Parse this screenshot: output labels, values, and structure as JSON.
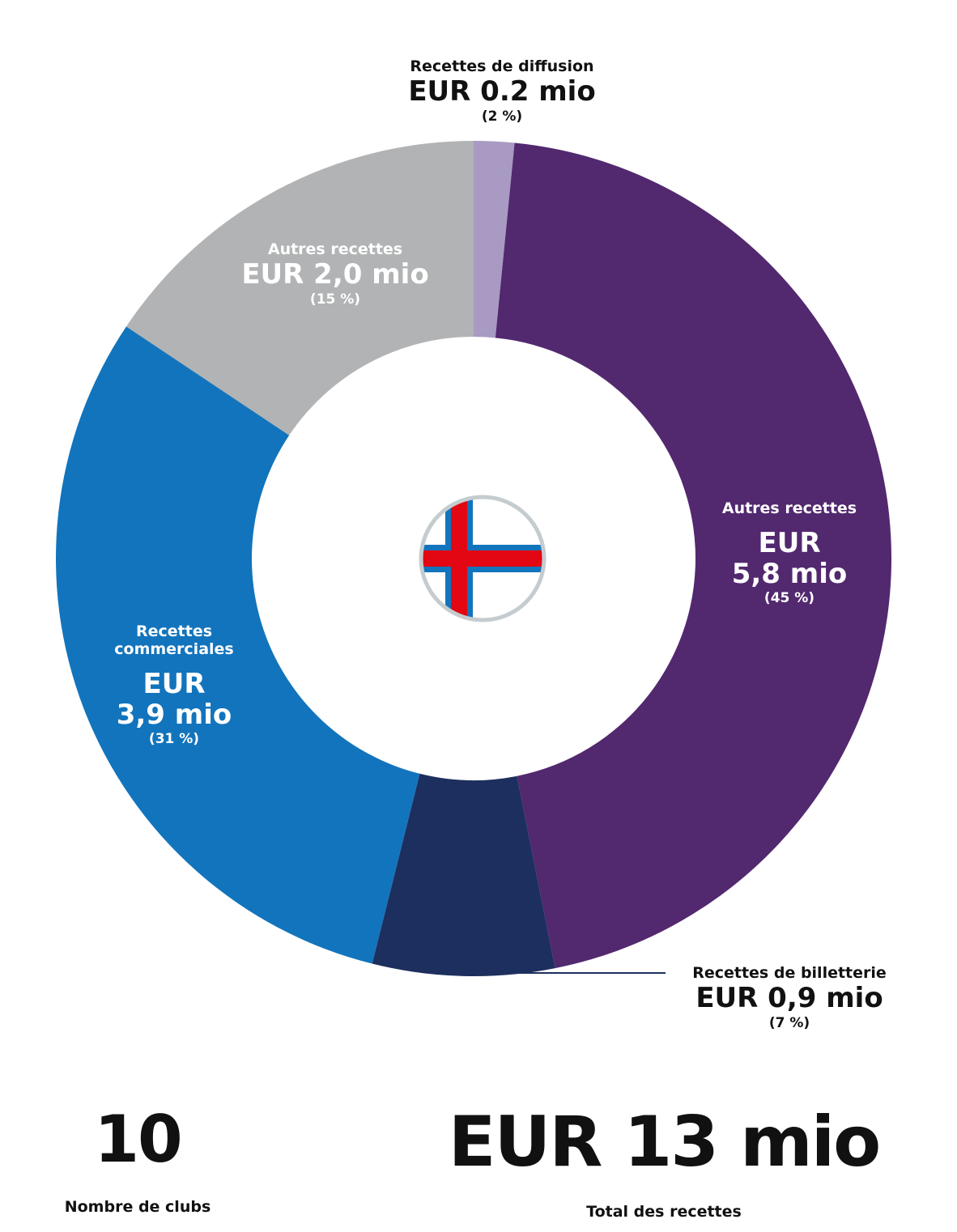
{
  "chart_data": {
    "type": "pie",
    "title": "",
    "slices": [
      {
        "label": "Recettes de diffusion",
        "value": 0.2,
        "value_label": "EUR 0.2 mio",
        "percent_label": "(2 %)",
        "color": "#a89ac2"
      },
      {
        "label": "Autres recettes",
        "value": 5.8,
        "value_label_1": "EUR",
        "value_label_2": "5,8 mio",
        "percent_label": "(45 %)",
        "color": "#52286f"
      },
      {
        "label": "Recettes de billetterie",
        "value": 0.9,
        "value_label": "EUR 0,9 mio",
        "percent_label": "(7 %)",
        "color": "#1d2f5e"
      },
      {
        "label_1": "Recettes",
        "label_2": "commerciales",
        "value": 3.9,
        "value_label_1": "EUR",
        "value_label_2": "3,9 mio",
        "percent_label": "(31 %)",
        "color": "#1274bc"
      },
      {
        "label": "Autres recettes",
        "value": 2.0,
        "value_label": "EUR 2,0 mio",
        "percent_label": "(15 %)",
        "color": "#b1b3b4"
      }
    ]
  },
  "stats": {
    "clubs_value": "10",
    "clubs_caption": "Nombre de clubs",
    "total_value": "EUR 13 mio",
    "total_caption": "Total des recettes"
  },
  "flag": {
    "icon": "faroe-islands-flag-icon",
    "field_color": "#ffffff",
    "cross_color": "#e30613",
    "border_color": "#1274bc",
    "ring_color": "#c5ccd0"
  }
}
